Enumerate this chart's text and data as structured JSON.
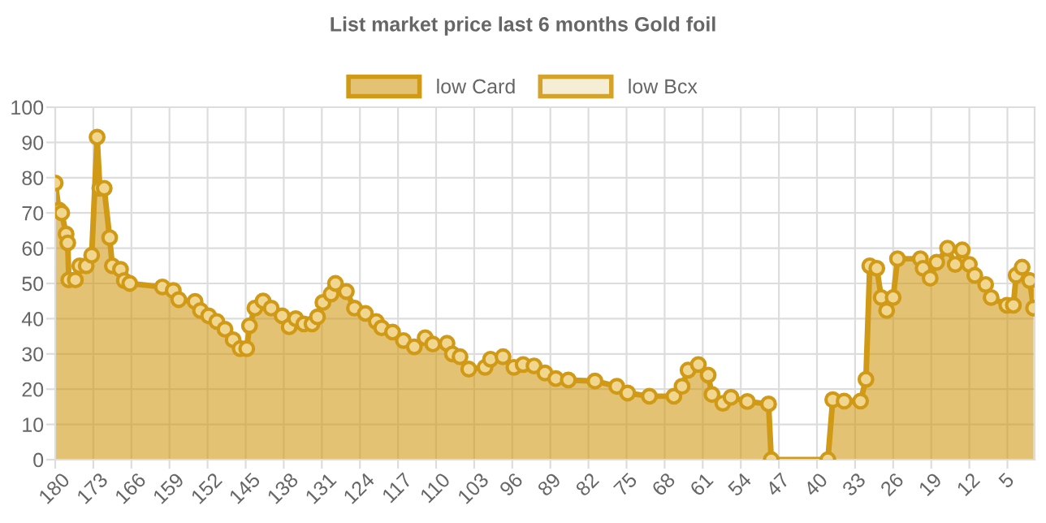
{
  "chart_data": {
    "type": "area",
    "title": "List market price last 6 months Gold foil",
    "xlim": [
      180,
      0
    ],
    "xticks": [
      180,
      173,
      166,
      159,
      152,
      145,
      138,
      131,
      124,
      117,
      110,
      103,
      96,
      89,
      82,
      75,
      68,
      61,
      54,
      47,
      40,
      33,
      26,
      19,
      12,
      5
    ],
    "ylim": [
      0,
      100
    ],
    "yticks": [
      0,
      10,
      20,
      30,
      40,
      50,
      60,
      70,
      80,
      90,
      100
    ],
    "grid": true,
    "legend": "top",
    "marker": "circle",
    "line_style": "solid",
    "series": [
      {
        "name": "low Card",
        "color": "#d09a16",
        "x": [
          180,
          179.3,
          178.8,
          178,
          177.7,
          177.5,
          176.3,
          175.5,
          174.3,
          173.3,
          172.3,
          171.8,
          171,
          170,
          169.5,
          168,
          167.3,
          166.3,
          160.3,
          158.3,
          157.3,
          154.3,
          153.3,
          151.8,
          150.3,
          148.8,
          147.3,
          146,
          144.8,
          144.3,
          143.3,
          141.8,
          140.3,
          138.3,
          137,
          135.8,
          134.3,
          132.8,
          131.8,
          130.8,
          129.3,
          128.5,
          126.5,
          125,
          123,
          121,
          120,
          118,
          116,
          114,
          112,
          110.6,
          108,
          107,
          105.6,
          104,
          101,
          100,
          97.7,
          95.7,
          94,
          92,
          90,
          88,
          85.7,
          80.8,
          76.8,
          74.8,
          70.8,
          66.3,
          64.8,
          63.7,
          61.8,
          60,
          59.3,
          57.3,
          55.8,
          52.8,
          48.9,
          48.4,
          38,
          37.1,
          35,
          32,
          31,
          30.3,
          29,
          28.2,
          27.2,
          26,
          25.2,
          21,
          20.5,
          19.2,
          18,
          16,
          14.6,
          13.3,
          12,
          11,
          9,
          8,
          5.1,
          3.9,
          3.4,
          2.3,
          0.9,
          0.2
        ],
        "values": [
          78.5,
          70.8,
          70,
          64,
          61.5,
          51,
          51,
          55,
          55,
          58,
          91.5,
          77,
          77,
          63,
          55,
          54,
          50.8,
          50,
          49,
          48,
          45.4,
          44.9,
          42.3,
          40.8,
          39.2,
          37,
          34,
          31.5,
          31.5,
          38,
          43,
          45,
          43,
          40.8,
          37.7,
          40,
          38.5,
          38.5,
          40.5,
          44.6,
          47,
          50,
          47.7,
          43,
          41.5,
          39.2,
          37.4,
          36.2,
          33.8,
          32,
          34.6,
          32.8,
          33,
          30,
          29.2,
          25.7,
          26.2,
          28.5,
          29.2,
          26.2,
          27,
          26.6,
          24.6,
          23,
          22.6,
          22.3,
          20.8,
          18.9,
          18,
          18,
          20.8,
          25.4,
          27,
          24,
          18.5,
          16,
          17.7,
          16.5,
          15.8,
          0,
          0,
          17,
          16.6,
          16.6,
          22.8,
          55,
          54.3,
          46,
          42.3,
          46,
          57,
          57,
          54.3,
          51.5,
          56,
          60,
          55.4,
          59.5,
          55.4,
          52.3,
          49.7,
          46,
          43.8,
          43.8,
          52.3,
          54.6,
          50.8,
          43
        ]
      },
      {
        "name": "low Bcx",
        "color": "#d4a32c"
      }
    ]
  }
}
